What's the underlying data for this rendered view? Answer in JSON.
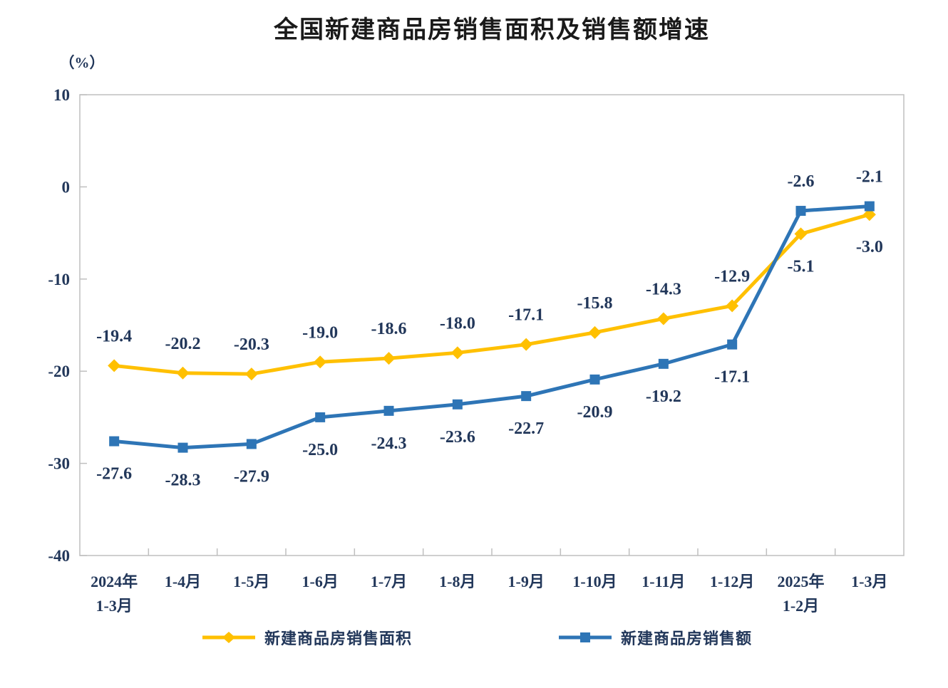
{
  "chart_data": {
    "type": "line",
    "title": "全国新建商品房销售面积及销售额增速",
    "unit_label": "（%）",
    "categories": [
      [
        "2024年",
        "1-3月"
      ],
      [
        "1-4月"
      ],
      [
        "1-5月"
      ],
      [
        "1-6月"
      ],
      [
        "1-7月"
      ],
      [
        "1-8月"
      ],
      [
        "1-9月"
      ],
      [
        "1-10月"
      ],
      [
        "1-11月"
      ],
      [
        "1-12月"
      ],
      [
        "2025年",
        "1-2月"
      ],
      [
        "1-3月"
      ]
    ],
    "y_ticks": [
      10,
      0,
      -10,
      -20,
      -30,
      -40
    ],
    "ylim": [
      -40,
      10
    ],
    "grid": false,
    "legend_position": "bottom",
    "series": [
      {
        "name": "新建商品房销售面积",
        "marker": "diamond",
        "color": "#FFC000",
        "values": [
          -19.4,
          -20.2,
          -20.3,
          -19.0,
          -18.6,
          -18.0,
          -17.1,
          -15.8,
          -14.3,
          -12.9,
          -5.1,
          -3.0
        ],
        "label_side": [
          "above",
          "above",
          "above",
          "above",
          "above",
          "above",
          "above",
          "above",
          "above",
          "above",
          "below",
          "below"
        ]
      },
      {
        "name": "新建商品房销售额",
        "marker": "square",
        "color": "#2E75B6",
        "values": [
          -27.6,
          -28.3,
          -27.9,
          -25.0,
          -24.3,
          -23.6,
          -22.7,
          -20.9,
          -19.2,
          -17.1,
          -2.6,
          -2.1
        ],
        "label_side": [
          "below",
          "below",
          "below",
          "below",
          "below",
          "below",
          "below",
          "below",
          "below",
          "below",
          "above",
          "above"
        ]
      }
    ],
    "colors": {
      "axis_border": "#BFBFBF",
      "text": "#22375a",
      "title": "#1a1a1a",
      "background": "#ffffff"
    }
  }
}
